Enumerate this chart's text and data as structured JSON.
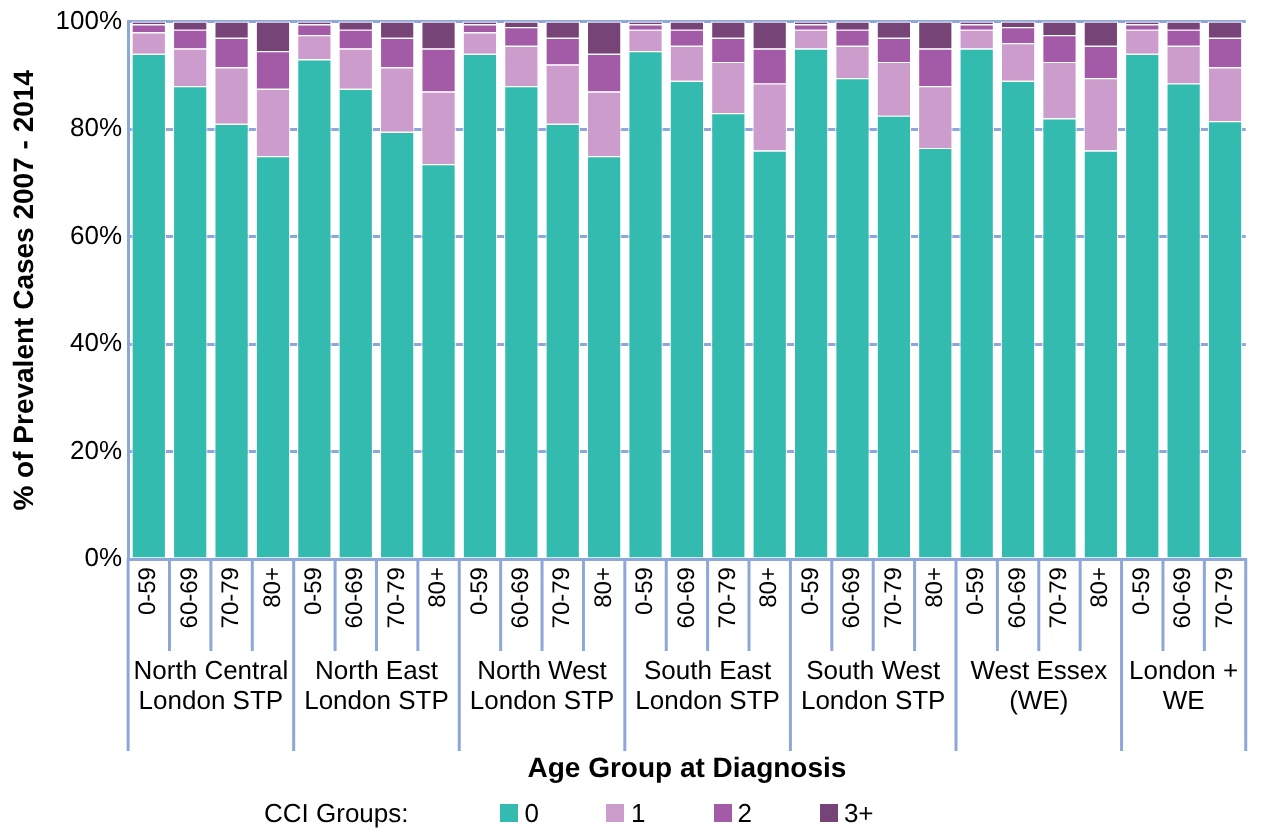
{
  "chart_data": {
    "type": "bar",
    "stacked": true,
    "xlabel": "Age Group at Diagnosis",
    "ylabel": "% of Prevalent Cases 2007 - 2014",
    "legend_title": "CCI Groups:",
    "legend": "bottom",
    "grid": "y",
    "categories": [
      "0-59",
      "60-69",
      "70-79",
      "80+",
      "0-59",
      "60-69",
      "70-79",
      "80+",
      "0-59",
      "60-69",
      "70-79",
      "80+",
      "0-59",
      "60-69",
      "70-79",
      "80+",
      "0-59",
      "60-69",
      "70-79",
      "80+",
      "0-59",
      "60-69",
      "70-79",
      "80+",
      "0-59",
      "60-69",
      "70-79"
    ],
    "annotations": [
      "North Central London STP",
      "North East London STP",
      "North West London STP",
      "South East London STP",
      "South West London STP",
      "West Essex (WE)",
      "London + WE"
    ],
    "ylim": [
      0,
      100
    ],
    "yticks": [
      {
        "value": 0,
        "label": "0%"
      },
      {
        "value": 20,
        "label": "20%"
      },
      {
        "value": 40,
        "label": "40%"
      },
      {
        "value": 60,
        "label": "60%"
      },
      {
        "value": 80,
        "label": "80%"
      },
      {
        "value": 100,
        "label": "100%"
      }
    ],
    "series": [
      {
        "name": "0",
        "color": "#33bbb0",
        "values": [
          94,
          88,
          81,
          75,
          93,
          87.5,
          79.5,
          73.5,
          94,
          88,
          81,
          75,
          94.5,
          89,
          83,
          76,
          95,
          89.5,
          82.5,
          76.5,
          95,
          89,
          82,
          76,
          94,
          88.5,
          81.5
        ]
      },
      {
        "name": "1",
        "color": "#cc9ccc",
        "values": [
          4,
          7,
          10.5,
          12.5,
          4.5,
          7.5,
          12,
          13.5,
          4,
          7.5,
          11,
          12,
          4,
          6.5,
          9.5,
          12.5,
          3.5,
          6,
          10,
          11.5,
          3.5,
          7,
          10.5,
          13.5,
          4.5,
          7,
          10
        ]
      },
      {
        "name": "2",
        "color": "#a35ba8",
        "values": [
          1.5,
          3.5,
          5.5,
          7,
          2,
          3.5,
          5.5,
          8,
          1.5,
          3.5,
          5,
          7,
          1,
          3,
          4.5,
          6.5,
          1,
          3,
          4.5,
          7,
          1,
          3,
          5,
          6,
          1,
          3,
          5.5
        ]
      },
      {
        "name": "3+",
        "color": "#774477",
        "values": [
          0.5,
          1.5,
          3,
          5.5,
          0.5,
          1.5,
          3,
          5,
          0.5,
          1,
          3,
          6,
          0.5,
          1.5,
          3,
          5,
          0.5,
          1.5,
          3,
          5,
          0.5,
          1,
          2.5,
          4.5,
          0.5,
          1.5,
          3
        ]
      }
    ]
  }
}
